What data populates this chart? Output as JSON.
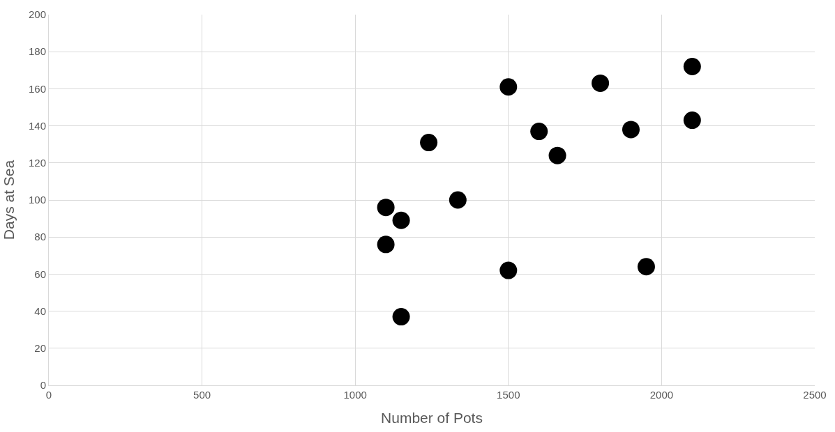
{
  "chart_data": {
    "type": "scatter",
    "xlabel": "Number of Pots",
    "ylabel": "Days at Sea",
    "x": [
      1100,
      1150,
      1100,
      1150,
      1240,
      1335,
      1500,
      1500,
      1600,
      1660,
      1800,
      1900,
      1950,
      2100,
      2100
    ],
    "values": [
      96,
      89,
      76,
      37,
      131,
      100,
      161,
      62,
      137,
      124,
      163,
      138,
      64,
      172,
      143
    ],
    "color": "#000000",
    "marker": "circle",
    "xlim": [
      0,
      2500
    ],
    "xticks": [
      0,
      500,
      1000,
      1500,
      2000,
      2500
    ],
    "ylim": [
      0,
      200
    ],
    "yticks": [
      0,
      20,
      40,
      60,
      80,
      100,
      120,
      140,
      160,
      180,
      200
    ],
    "grid": true,
    "legend": false
  }
}
